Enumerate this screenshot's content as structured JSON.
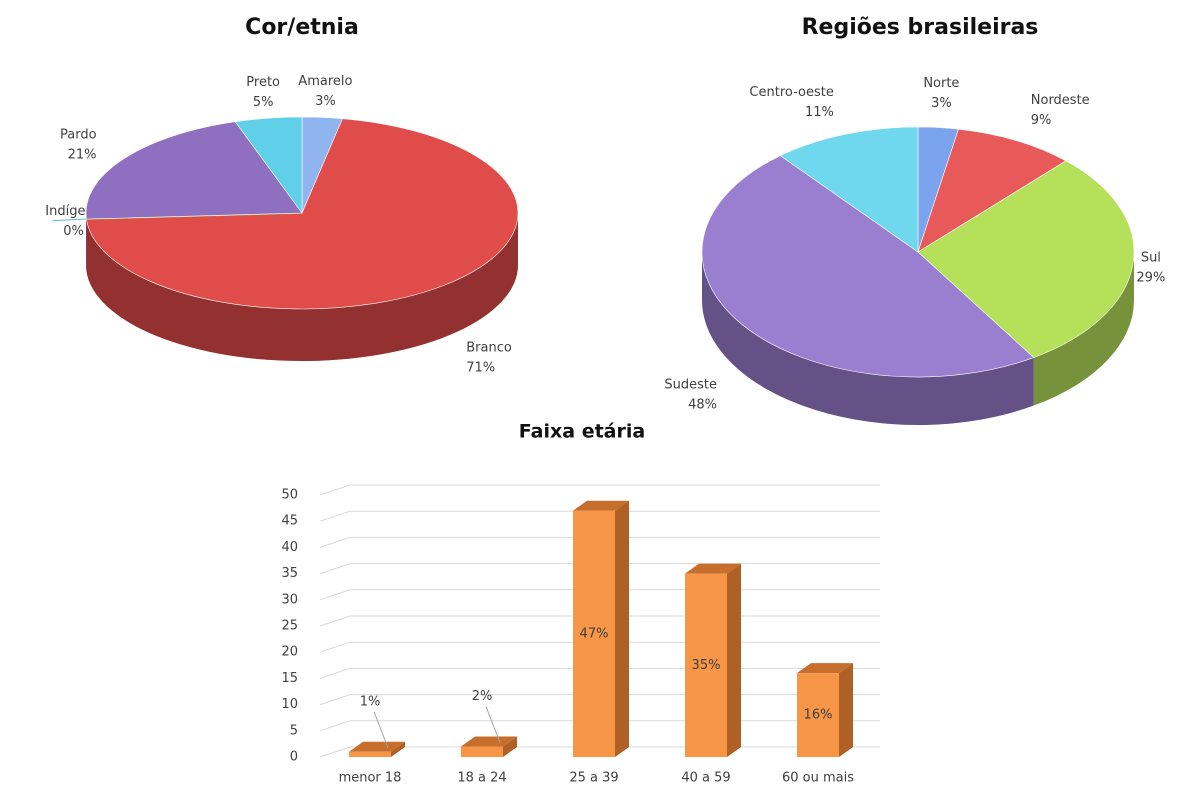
{
  "chart_data": [
    {
      "type": "pie",
      "title": "Cor/etnia",
      "categories": [
        "Amarelo",
        "Branco",
        "Indígena",
        "Pardo",
        "Preto"
      ],
      "values": [
        3,
        71,
        0,
        21,
        5
      ],
      "value_labels": [
        "3%",
        "71%",
        "0%",
        "21%",
        "5%"
      ],
      "colors": [
        "#8fb4f0",
        "#e04c4a",
        "#9bbb59",
        "#8f6fc0",
        "#5fd0e8"
      ]
    },
    {
      "type": "pie",
      "title": "Regiões brasileiras",
      "categories": [
        "Norte",
        "Nordeste",
        "Sul",
        "Sudeste",
        "Centro-oeste"
      ],
      "values": [
        3,
        9,
        29,
        48,
        11
      ],
      "value_labels": [
        "3%",
        "9%",
        "29%",
        "48%",
        "11%"
      ],
      "colors": [
        "#7aa5ee",
        "#e8595a",
        "#b5e05a",
        "#9a7fd0",
        "#6fd8ee"
      ]
    },
    {
      "type": "bar",
      "title": "Faixa etária",
      "categories": [
        "menor 18",
        "18 a 24",
        "25 a 39",
        "40 a 59",
        "60 ou mais"
      ],
      "values": [
        1,
        2,
        47,
        35,
        16
      ],
      "value_labels": [
        "1%",
        "2%",
        "47%",
        "35%",
        "16%"
      ],
      "color": "#f79646",
      "ylim": [
        0,
        50
      ],
      "yticks": [
        0,
        5,
        10,
        15,
        20,
        25,
        30,
        35,
        40,
        45,
        50
      ],
      "grid": true
    }
  ]
}
